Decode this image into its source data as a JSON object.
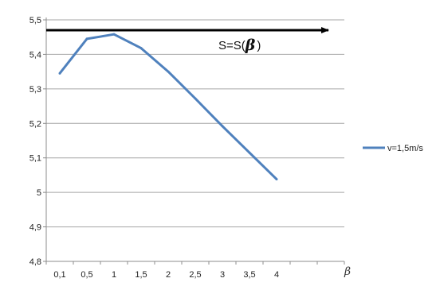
{
  "chart_data": {
    "type": "line",
    "categories": [
      "0,1",
      "0,5",
      "1",
      "1,5",
      "2",
      "2,5",
      "3",
      "3,5",
      "4"
    ],
    "series": [
      {
        "name": "v=1,5m/s",
        "color": "#4f81bd",
        "values": [
          5.345,
          5.445,
          5.458,
          5.418,
          5.35,
          5.272,
          5.192,
          5.115,
          5.038
        ]
      }
    ],
    "ylim": [
      4.8,
      5.5
    ],
    "y_ticks": [
      {
        "value": 4.8,
        "label": "4,8"
      },
      {
        "value": 4.9,
        "label": "4,9"
      },
      {
        "value": 5.0,
        "label": "5"
      },
      {
        "value": 5.1,
        "label": "5,1"
      },
      {
        "value": 5.2,
        "label": "5,2"
      },
      {
        "value": 5.3,
        "label": "5,3"
      },
      {
        "value": 5.4,
        "label": "5,4"
      },
      {
        "value": 5.5,
        "label": "5,5"
      }
    ],
    "xlabel": "β",
    "grid": true,
    "legend_position": "right",
    "annotation": {
      "text_prefix": "S=S(",
      "symbol": "β",
      "text_suffix": ")",
      "arrow_y": 5.47,
      "arrow_color": "#000000"
    }
  }
}
